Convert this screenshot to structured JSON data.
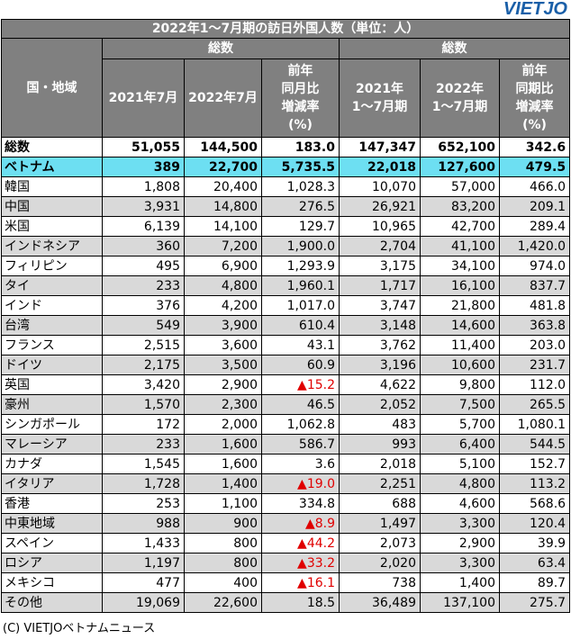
{
  "logo": "VIETJO",
  "table": {
    "title": "2022年1～7月期の訪日外国人数（単位：人）",
    "region_header": "国・地域",
    "group_headers": [
      "総数",
      "総数"
    ],
    "sub_headers": [
      "2021年7月",
      "2022年7月",
      "前年\n同月比\n増減率\n(%)",
      "2021年\n1～7月期",
      "2022年\n1～7月期",
      "前年\n同期比\n増減率\n(%)"
    ],
    "rows": [
      {
        "name": "総数",
        "v": [
          "51,055",
          "144,500",
          "183.0",
          "147,347",
          "652,100",
          "342.6"
        ],
        "style": "total"
      },
      {
        "name": "ベトナム",
        "v": [
          "389",
          "22,700",
          "5,735.5",
          "22,018",
          "127,600",
          "479.5"
        ],
        "style": "vn"
      },
      {
        "name": "韓国",
        "v": [
          "1,808",
          "20,400",
          "1,028.3",
          "10,070",
          "57,000",
          "466.0"
        ],
        "style": ""
      },
      {
        "name": "中国",
        "v": [
          "3,931",
          "14,800",
          "276.5",
          "26,921",
          "83,200",
          "209.1"
        ],
        "style": ""
      },
      {
        "name": "米国",
        "v": [
          "6,139",
          "14,100",
          "129.7",
          "10,965",
          "42,700",
          "289.4"
        ],
        "style": ""
      },
      {
        "name": "インドネシア",
        "v": [
          "360",
          "7,200",
          "1,900.0",
          "2,704",
          "41,100",
          "1,420.0"
        ],
        "style": ""
      },
      {
        "name": "フィリピン",
        "v": [
          "495",
          "6,900",
          "1,293.9",
          "3,175",
          "34,100",
          "974.0"
        ],
        "style": ""
      },
      {
        "name": "タイ",
        "v": [
          "233",
          "4,800",
          "1,960.1",
          "1,717",
          "16,100",
          "837.7"
        ],
        "style": ""
      },
      {
        "name": "インド",
        "v": [
          "376",
          "4,200",
          "1,017.0",
          "3,747",
          "21,800",
          "481.8"
        ],
        "style": ""
      },
      {
        "name": "台湾",
        "v": [
          "549",
          "3,900",
          "610.4",
          "3,148",
          "14,600",
          "363.8"
        ],
        "style": ""
      },
      {
        "name": "フランス",
        "v": [
          "2,515",
          "3,600",
          "43.1",
          "3,762",
          "11,400",
          "203.0"
        ],
        "style": ""
      },
      {
        "name": "ドイツ",
        "v": [
          "2,175",
          "3,500",
          "60.9",
          "3,196",
          "10,600",
          "231.7"
        ],
        "style": ""
      },
      {
        "name": "英国",
        "v": [
          "3,420",
          "2,900",
          "▲15.2",
          "4,622",
          "9,800",
          "112.0"
        ],
        "style": "",
        "neg": true
      },
      {
        "name": "豪州",
        "v": [
          "1,570",
          "2,300",
          "46.5",
          "2,052",
          "7,500",
          "265.5"
        ],
        "style": ""
      },
      {
        "name": "シンガポール",
        "v": [
          "172",
          "2,000",
          "1,062.8",
          "483",
          "5,700",
          "1,080.1"
        ],
        "style": ""
      },
      {
        "name": "マレーシア",
        "v": [
          "233",
          "1,600",
          "586.7",
          "993",
          "6,400",
          "544.5"
        ],
        "style": ""
      },
      {
        "name": "カナダ",
        "v": [
          "1,545",
          "1,600",
          "3.6",
          "2,018",
          "5,100",
          "152.7"
        ],
        "style": ""
      },
      {
        "name": "イタリア",
        "v": [
          "1,728",
          "1,400",
          "▲19.0",
          "2,251",
          "4,800",
          "113.2"
        ],
        "style": "",
        "neg": true
      },
      {
        "name": "香港",
        "v": [
          "253",
          "1,100",
          "334.8",
          "688",
          "4,600",
          "568.6"
        ],
        "style": ""
      },
      {
        "name": "中東地域",
        "v": [
          "988",
          "900",
          "▲8.9",
          "1,497",
          "3,300",
          "120.4"
        ],
        "style": "",
        "neg": true
      },
      {
        "name": "スペイン",
        "v": [
          "1,433",
          "800",
          "▲44.2",
          "2,073",
          "2,900",
          "39.9"
        ],
        "style": "",
        "neg": true
      },
      {
        "name": "ロシア",
        "v": [
          "1,197",
          "800",
          "▲33.2",
          "2,020",
          "3,300",
          "63.4"
        ],
        "style": "",
        "neg": true
      },
      {
        "name": "メキシコ",
        "v": [
          "477",
          "400",
          "▲16.1",
          "738",
          "1,400",
          "89.7"
        ],
        "style": "",
        "neg": true
      },
      {
        "name": "その他",
        "v": [
          "19,069",
          "22,600",
          "18.5",
          "36,489",
          "137,100",
          "275.7"
        ],
        "style": ""
      }
    ]
  },
  "credit": "(C) VIETJOベトナムニュース",
  "colors": {
    "header_bg": "#808080",
    "vietnam_row": "#6ddff2",
    "alt_row": "#d9d9d9",
    "negative": "#e00000",
    "logo": "#1a5fa8"
  }
}
